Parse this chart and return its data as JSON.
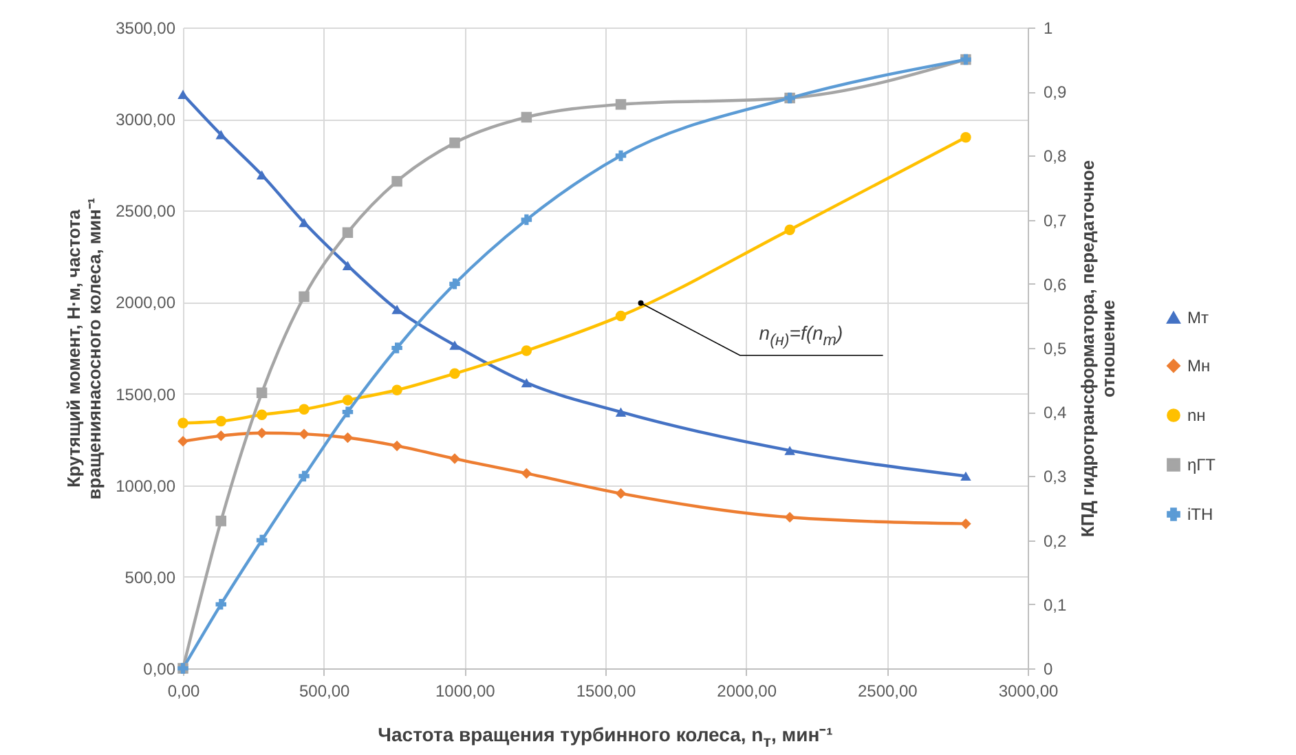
{
  "chart_data": {
    "type": "line",
    "xlabel": "Частота вращения турбинного колеса, n$_{т}$, мин⁻¹",
    "ylabel": "Крутящий момент, Н·м, частота вращениянасосного колеса, мин⁻¹",
    "y2label": "КПД гидротрансформатора, передаточное отношение",
    "x": [
      0,
      135,
      280,
      430,
      585,
      760,
      965,
      1220,
      1555,
      2155,
      2780
    ],
    "series": [
      {
        "name": "Мт",
        "color": "#4472c4",
        "marker": "triangle",
        "values": [
          3135,
          2915,
          2695,
          2435,
          2200,
          1960,
          1765,
          1560,
          1400,
          1190,
          1050
        ]
      },
      {
        "name": "Мн",
        "color": "#ed7d31",
        "marker": "diamond",
        "values": [
          1240,
          1270,
          1285,
          1280,
          1260,
          1215,
          1145,
          1065,
          955,
          825,
          790
        ]
      },
      {
        "name": "nн",
        "color": "#ffc000",
        "marker": "circle",
        "values": [
          1340,
          1350,
          1385,
          1415,
          1465,
          1520,
          1610,
          1735,
          1925,
          2395,
          2900
        ]
      },
      {
        "name": "ηГТ",
        "color": "#a5a5a5",
        "marker": "square",
        "axis": "y2",
        "values": [
          0,
          0.23,
          0.43,
          0.58,
          0.68,
          0.76,
          0.82,
          0.86,
          0.88,
          0.89,
          0.95
        ]
      },
      {
        "name": "iТН",
        "color": "#5b9bd5",
        "marker": "cross",
        "axis": "y2",
        "values": [
          0,
          0.1,
          0.2,
          0.3,
          0.4,
          0.5,
          0.6,
          0.7,
          0.8,
          0.89,
          0.95
        ]
      }
    ],
    "xlim": [
      0,
      3000
    ],
    "xticks": [
      {
        "value": 0,
        "label": "0,00"
      },
      {
        "value": 500,
        "label": "500,00"
      },
      {
        "value": 1000,
        "label": "1000,00"
      },
      {
        "value": 1500,
        "label": "1500,00"
      },
      {
        "value": 2000,
        "label": "2000,00"
      },
      {
        "value": 2500,
        "label": "2500,00"
      },
      {
        "value": 3000,
        "label": "3000,00"
      }
    ],
    "ylim": [
      0,
      3500
    ],
    "yticks": [
      {
        "value": 0,
        "label": "0,00"
      },
      {
        "value": 500,
        "label": "500,00"
      },
      {
        "value": 1000,
        "label": "1000,00"
      },
      {
        "value": 1500,
        "label": "1500,00"
      },
      {
        "value": 2000,
        "label": "2000,00"
      },
      {
        "value": 2500,
        "label": "2500,00"
      },
      {
        "value": 3000,
        "label": "3000,00"
      },
      {
        "value": 3500,
        "label": "3500,00"
      }
    ],
    "y2lim": [
      0,
      1
    ],
    "y2ticks": [
      0,
      {
        "value": 0.1,
        "label": "0,1"
      },
      {
        "value": 0.2,
        "label": "0,2"
      },
      {
        "value": 0.3,
        "label": "0,3"
      },
      {
        "value": 0.4,
        "label": "0,4"
      },
      {
        "value": 0.5,
        "label": "0,5"
      },
      {
        "value": 0.6,
        "label": "0,6"
      },
      {
        "value": 0.7,
        "label": "0,7"
      },
      {
        "value": 0.8,
        "label": "0,8"
      },
      {
        "value": 0.9,
        "label": "0,9"
      },
      1
    ],
    "annotations": [
      {
        "text": "n$_{(н)}$=f(n$_{т}$)",
        "x": 1626,
        "y": 1995
      }
    ],
    "grid": true,
    "legend": "right"
  }
}
